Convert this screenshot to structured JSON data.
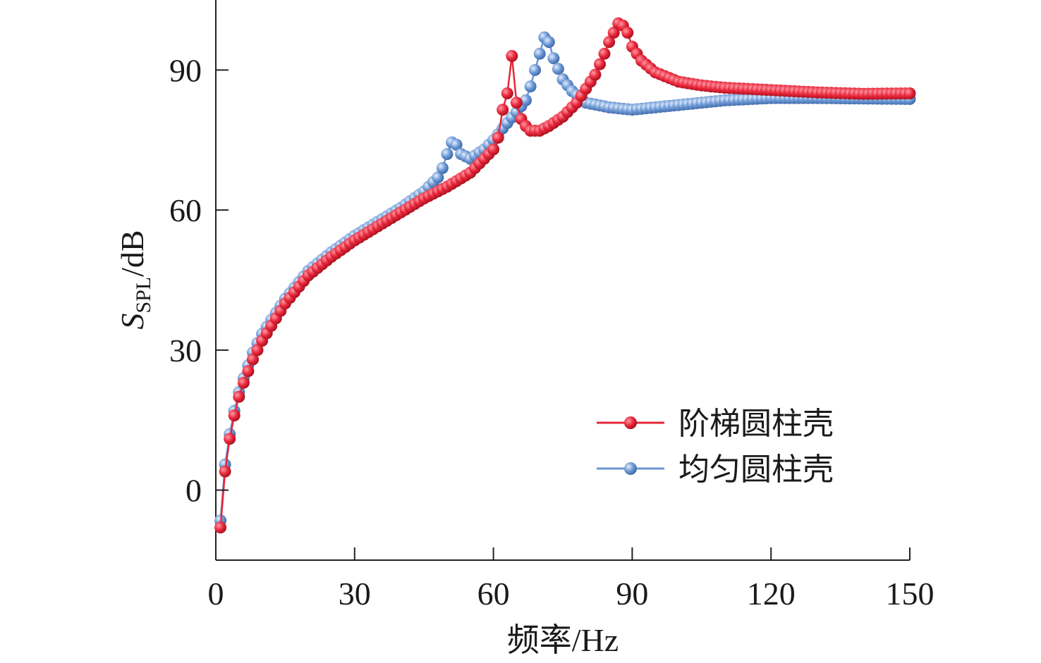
{
  "chart_data": {
    "type": "line",
    "xlabel": "频率/Hz",
    "ylabel": {
      "main": "S",
      "sub": "SPL",
      "unit": "/dB"
    },
    "xlim": [
      0,
      150
    ],
    "ylim": [
      -15,
      105
    ],
    "xticks": [
      0,
      30,
      60,
      90,
      120,
      150
    ],
    "yticks": [
      0,
      30,
      60,
      90
    ],
    "xtick_labels": [
      "0",
      "30",
      "60",
      "90",
      "120",
      "150"
    ],
    "ytick_labels": [
      "0",
      "30",
      "60",
      "90"
    ],
    "grid": false,
    "legend_position": "bottom-right",
    "series": [
      {
        "name": "阶梯圆柱壳",
        "color": "#e8263a",
        "marker": "circle",
        "x": [
          1,
          2,
          3,
          4,
          5,
          6,
          8,
          10,
          15,
          20,
          25,
          30,
          35,
          40,
          45,
          50,
          55,
          58,
          60,
          61,
          62,
          63,
          64,
          65,
          66,
          67,
          68,
          70,
          72,
          75,
          78,
          80,
          82,
          84,
          85,
          86,
          87,
          88,
          89,
          90,
          92,
          95,
          100,
          105,
          110,
          120,
          130,
          140,
          150
        ],
        "y": [
          -8,
          4,
          11,
          16,
          20,
          23,
          28,
          32,
          40,
          46,
          50,
          53.5,
          56.5,
          59.5,
          62.5,
          65,
          68,
          71,
          73,
          75.5,
          81.5,
          85,
          93,
          83,
          79.5,
          78,
          77,
          77,
          78,
          80,
          83,
          86,
          89,
          93.5,
          96,
          98,
          100,
          99.5,
          98,
          95,
          92,
          89.5,
          87.5,
          86.7,
          86.2,
          85.7,
          85.2,
          84.9,
          85
        ]
      },
      {
        "name": "均匀圆柱壳",
        "color": "#6a96d3",
        "marker": "circle",
        "x": [
          1,
          2,
          3,
          4,
          5,
          6,
          8,
          10,
          15,
          20,
          25,
          30,
          35,
          40,
          45,
          48,
          49,
          50,
          51,
          52,
          53,
          55,
          58,
          60,
          62,
          65,
          67,
          68,
          69,
          70,
          71,
          72,
          73,
          75,
          77,
          80,
          85,
          90,
          100,
          110,
          120,
          130,
          140,
          150
        ],
        "y": [
          -6.5,
          5.5,
          12,
          17,
          21,
          24,
          29.5,
          33.5,
          41,
          47,
          51,
          54.5,
          57.5,
          60.5,
          64,
          67,
          69,
          72,
          74.5,
          74,
          72,
          71,
          73,
          75,
          77.5,
          81,
          83.5,
          86.5,
          90,
          93.5,
          97,
          96,
          92.5,
          88,
          85.5,
          83,
          82,
          81.5,
          82.5,
          83.5,
          84,
          84,
          83.9,
          83.8
        ]
      }
    ]
  }
}
